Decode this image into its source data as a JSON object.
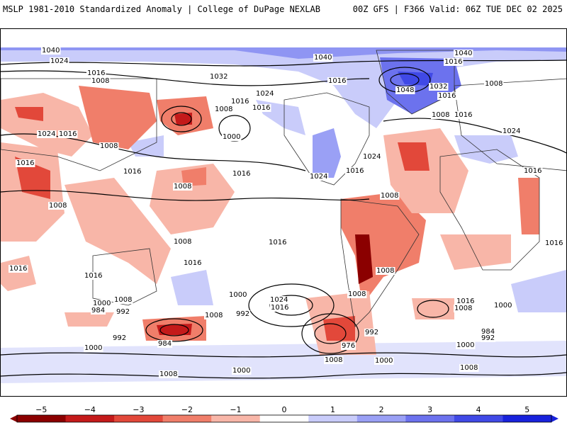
{
  "header": {
    "left_title": "MSLP 1981-2010 Standardized Anomaly | College of DuPage NEXLAB",
    "right_title": "00Z GFS | F366 Valid: 06Z TUE DEC 02 2025"
  },
  "colors": {
    "neg5": "#8b0000",
    "neg4": "#c41a1a",
    "neg3": "#e2483a",
    "neg2": "#f07e6a",
    "neg1": "#f8b6a8",
    "zero": "#ffffff",
    "pos1": "#c9ccfa",
    "pos2": "#9aa0f5",
    "pos3": "#6c72ee",
    "pos4": "#4049e6",
    "pos5": "#1822dc"
  },
  "contour_labels": [
    "1040",
    "1024",
    "1016",
    "1008",
    "1032",
    "1016",
    "1040",
    "1040",
    "1016",
    "1048",
    "1032",
    "1016",
    "1008",
    "1024",
    "1016",
    "1016",
    "1008",
    "1008",
    "1016",
    "1024",
    "1016",
    "1008",
    "1000",
    "1024",
    "1016",
    "1024",
    "1016",
    "1008",
    "1008",
    "1016",
    "1024",
    "1016",
    "1016",
    "1008",
    "1008",
    "1008",
    "1016",
    "1016",
    "1008",
    "1016",
    "1016",
    "1000",
    "984",
    "992",
    "1008",
    "984",
    "992",
    "1000",
    "992",
    "1000",
    "1024",
    "1016",
    "1008",
    "992",
    "976",
    "1016",
    "1008",
    "1000",
    "984",
    "992",
    "1000",
    "1008",
    "1000",
    "1008",
    "1000",
    "1008",
    "1016"
  ],
  "colorbar": {
    "ticks": [
      "−5",
      "−4",
      "−3",
      "−2",
      "−1",
      "0",
      "1",
      "2",
      "3",
      "4",
      "5"
    ]
  }
}
